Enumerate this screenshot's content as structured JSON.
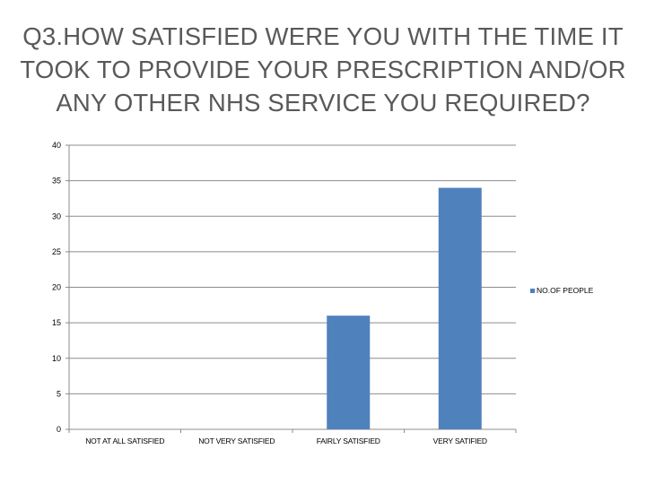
{
  "slide": {
    "title": "Q3.HOW SATISFIED WERE YOU WITH THE TIME IT TOOK TO PROVIDE YOUR PRESCRIPTION AND/OR ANY OTHER NHS SERVICE YOU REQUIRED?"
  },
  "chart_data": {
    "type": "bar",
    "title": "",
    "xlabel": "",
    "ylabel": "",
    "categories": [
      "NOT AT ALL SATISFIED",
      "NOT VERY SATISFIED",
      "FAIRLY SATISFIED",
      "VERY SATIFIED"
    ],
    "series": [
      {
        "name": "NO.OF PEOPLE",
        "values": [
          0,
          0,
          16,
          34
        ],
        "color": "#4f81bd"
      }
    ],
    "ylim": [
      0,
      40
    ],
    "yticks": [
      0,
      5,
      10,
      15,
      20,
      25,
      30,
      35,
      40
    ],
    "grid": true,
    "legend_position": "right"
  }
}
